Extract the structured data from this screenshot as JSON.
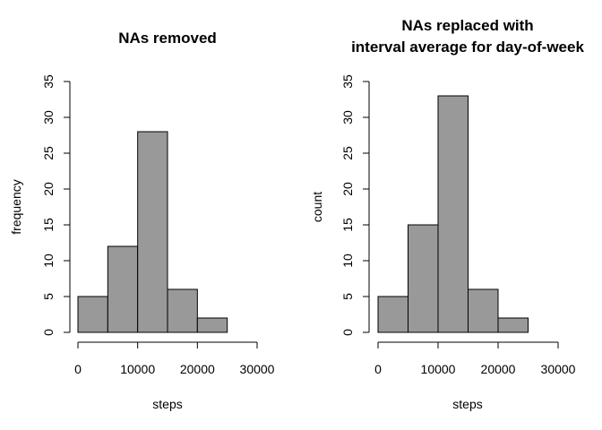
{
  "chart_data": [
    {
      "type": "bar",
      "title": [
        "NAs removed"
      ],
      "xlabel": "steps",
      "ylabel": "frequency",
      "bin_edges": [
        0,
        5000,
        10000,
        15000,
        20000,
        25000
      ],
      "values": [
        5,
        12,
        28,
        6,
        2
      ],
      "xlim": [
        0,
        30000
      ],
      "ylim": [
        0,
        35
      ],
      "xticks": [
        0,
        10000,
        20000,
        30000
      ],
      "yticks": [
        0,
        5,
        10,
        15,
        20,
        25,
        30,
        35
      ],
      "bar_color": "#999999",
      "grid": false
    },
    {
      "type": "bar",
      "title": [
        "NAs replaced with",
        "interval average for day-of-week"
      ],
      "xlabel": "steps",
      "ylabel": "count",
      "bin_edges": [
        0,
        5000,
        10000,
        15000,
        20000,
        25000
      ],
      "values": [
        5,
        15,
        33,
        6,
        2
      ],
      "xlim": [
        0,
        30000
      ],
      "ylim": [
        0,
        35
      ],
      "xticks": [
        0,
        10000,
        20000,
        30000
      ],
      "yticks": [
        0,
        5,
        10,
        15,
        20,
        25,
        30,
        35
      ],
      "bar_color": "#999999",
      "grid": false
    }
  ]
}
